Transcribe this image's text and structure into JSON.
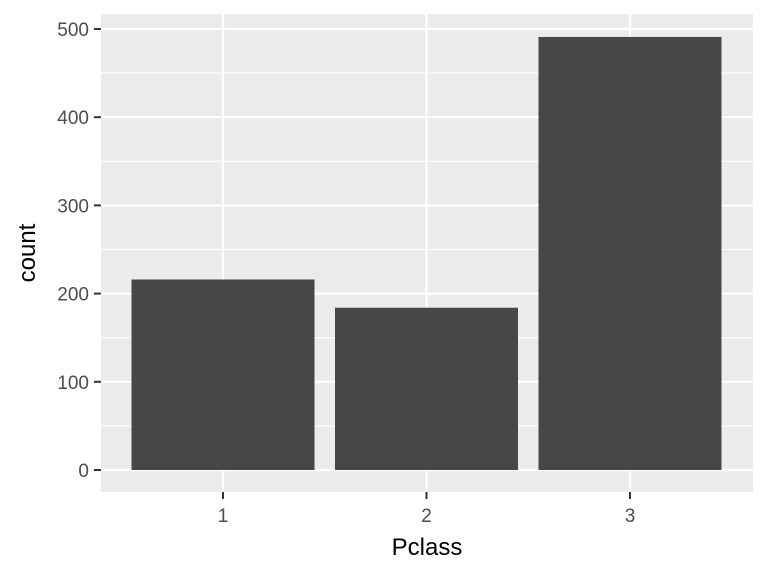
{
  "chart_data": {
    "type": "bar",
    "categories": [
      "1",
      "2",
      "3"
    ],
    "values": [
      216,
      184,
      491
    ],
    "xlabel": "Pclass",
    "ylabel": "count",
    "ylim": [
      0,
      500
    ],
    "yticks": [
      0,
      100,
      200,
      300,
      400,
      500
    ],
    "grid": true,
    "colors": {
      "panel": "#ebebeb",
      "bar": "#474747",
      "grid_major": "#ffffff",
      "tick_text": "#4d4d4d",
      "tick_mark": "#333333"
    }
  }
}
